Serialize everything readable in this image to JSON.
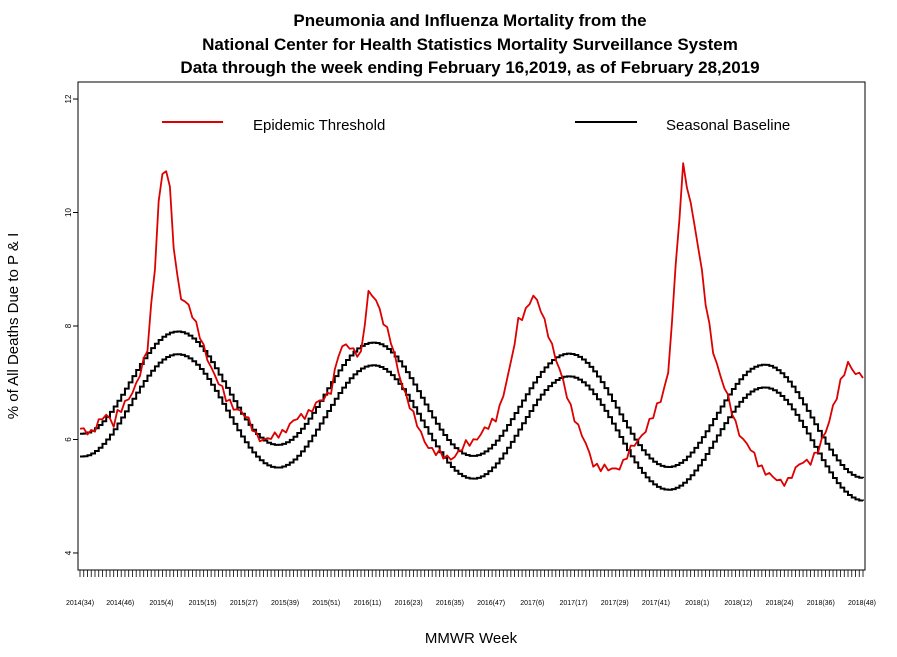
{
  "chart_data": {
    "type": "line",
    "title_lines": [
      "Pneumonia and Influenza Mortality from the",
      "National Center for Health Statistics Mortality Surveillance System",
      "Data through the week ending February 16,2019, as of February 28,2019"
    ],
    "xlabel": "MMWR Week",
    "ylabel": "% of All Deaths Due to P & I",
    "ylim": [
      3.7,
      12.3
    ],
    "yticks": [
      4,
      6,
      8,
      10,
      12
    ],
    "legend": {
      "placement": "top",
      "entries": [
        {
          "label": "Epidemic Threshold",
          "color": "#dd0000"
        },
        {
          "label": "Seasonal Baseline",
          "color": "#000000"
        }
      ]
    },
    "x_tick_labels": [
      "2014(34)",
      "2014(46)",
      "2015(4)",
      "2015(15)",
      "2015(27)",
      "2015(39)",
      "2015(51)",
      "2016(11)",
      "2016(23)",
      "2016(35)",
      "2016(47)",
      "2017(6)",
      "2017(17)",
      "2017(29)",
      "2017(41)",
      "2018(1)",
      "2018(12)",
      "2018(24)",
      "2018(36)",
      "2018(48)"
    ],
    "observed_points": [
      [
        0,
        6.15
      ],
      [
        3,
        6.15
      ],
      [
        5,
        6.3
      ],
      [
        7,
        6.4
      ],
      [
        9,
        6.3
      ],
      [
        10,
        6.5
      ],
      [
        12,
        6.6
      ],
      [
        14,
        6.8
      ],
      [
        16,
        7.2
      ],
      [
        18,
        7.6
      ],
      [
        20,
        9.0
      ],
      [
        21,
        10.2
      ],
      [
        22,
        10.7
      ],
      [
        23,
        10.8
      ],
      [
        24,
        10.4
      ],
      [
        25,
        9.4
      ],
      [
        26,
        8.8
      ],
      [
        27,
        8.5
      ],
      [
        29,
        8.4
      ],
      [
        31,
        8.0
      ],
      [
        33,
        7.6
      ],
      [
        35,
        7.3
      ],
      [
        37,
        7.0
      ],
      [
        39,
        6.7
      ],
      [
        41,
        6.6
      ],
      [
        43,
        6.5
      ],
      [
        45,
        6.3
      ],
      [
        47,
        6.1
      ],
      [
        49,
        6.0
      ],
      [
        51,
        6.0
      ],
      [
        53,
        6.1
      ],
      [
        55,
        6.2
      ],
      [
        57,
        6.3
      ],
      [
        59,
        6.4
      ],
      [
        61,
        6.5
      ],
      [
        63,
        6.6
      ],
      [
        65,
        6.7
      ],
      [
        67,
        6.9
      ],
      [
        69,
        7.5
      ],
      [
        71,
        7.65
      ],
      [
        73,
        7.6
      ],
      [
        75,
        7.5
      ],
      [
        77,
        8.55
      ],
      [
        79,
        8.5
      ],
      [
        81,
        8.1
      ],
      [
        83,
        7.7
      ],
      [
        85,
        7.2
      ],
      [
        87,
        6.8
      ],
      [
        89,
        6.4
      ],
      [
        91,
        6.1
      ],
      [
        93,
        5.9
      ],
      [
        95,
        5.75
      ],
      [
        97,
        5.7
      ],
      [
        99,
        5.7
      ],
      [
        101,
        5.75
      ],
      [
        103,
        5.9
      ],
      [
        105,
        6.0
      ],
      [
        107,
        6.1
      ],
      [
        109,
        6.2
      ],
      [
        111,
        6.4
      ],
      [
        113,
        6.8
      ],
      [
        115,
        7.3
      ],
      [
        117,
        8.1
      ],
      [
        119,
        8.3
      ],
      [
        121,
        8.5
      ],
      [
        123,
        8.3
      ],
      [
        125,
        7.9
      ],
      [
        127,
        7.4
      ],
      [
        129,
        7.0
      ],
      [
        131,
        6.6
      ],
      [
        133,
        6.2
      ],
      [
        135,
        5.9
      ],
      [
        137,
        5.6
      ],
      [
        139,
        5.5
      ],
      [
        141,
        5.45
      ],
      [
        143,
        5.5
      ],
      [
        145,
        5.6
      ],
      [
        147,
        5.8
      ],
      [
        149,
        6.0
      ],
      [
        151,
        6.2
      ],
      [
        153,
        6.4
      ],
      [
        155,
        6.7
      ],
      [
        157,
        7.2
      ],
      [
        159,
        9.0
      ],
      [
        161,
        10.8
      ],
      [
        163,
        10.2
      ],
      [
        165,
        9.4
      ],
      [
        167,
        8.4
      ],
      [
        169,
        7.6
      ],
      [
        171,
        7.1
      ],
      [
        173,
        6.7
      ],
      [
        175,
        6.3
      ],
      [
        177,
        6.0
      ],
      [
        179,
        5.8
      ],
      [
        181,
        5.6
      ],
      [
        183,
        5.45
      ],
      [
        185,
        5.3
      ],
      [
        187,
        5.25
      ],
      [
        189,
        5.3
      ],
      [
        191,
        5.45
      ],
      [
        193,
        5.6
      ],
      [
        195,
        5.65
      ],
      [
        197,
        5.8
      ],
      [
        199,
        6.1
      ],
      [
        201,
        6.6
      ],
      [
        203,
        7.0
      ],
      [
        205,
        7.3
      ],
      [
        207,
        7.2
      ],
      [
        209,
        7.15
      ]
    ],
    "baseline": {
      "mean": 6.65,
      "amplitude": 0.95,
      "trend": -0.00374,
      "peak_week": 26,
      "period": 52.18
    },
    "threshold_offset": 0.4,
    "n_weeks": 210
  }
}
